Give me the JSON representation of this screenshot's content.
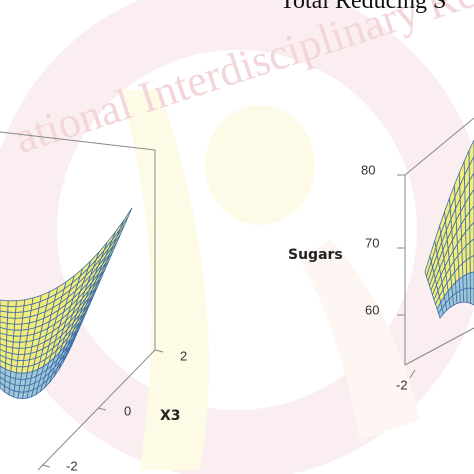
{
  "figure": {
    "title": "Total Reducing S",
    "watermark": "ational Interdisciplinary Re",
    "left_plot": {
      "axis_label": "X3",
      "ticks": [
        "2",
        "0",
        "-2"
      ]
    },
    "right_plot": {
      "axis_label": "Sugars",
      "z_ticks": [
        "80",
        "70",
        "60"
      ],
      "x_ticks": [
        "-2"
      ]
    }
  }
}
